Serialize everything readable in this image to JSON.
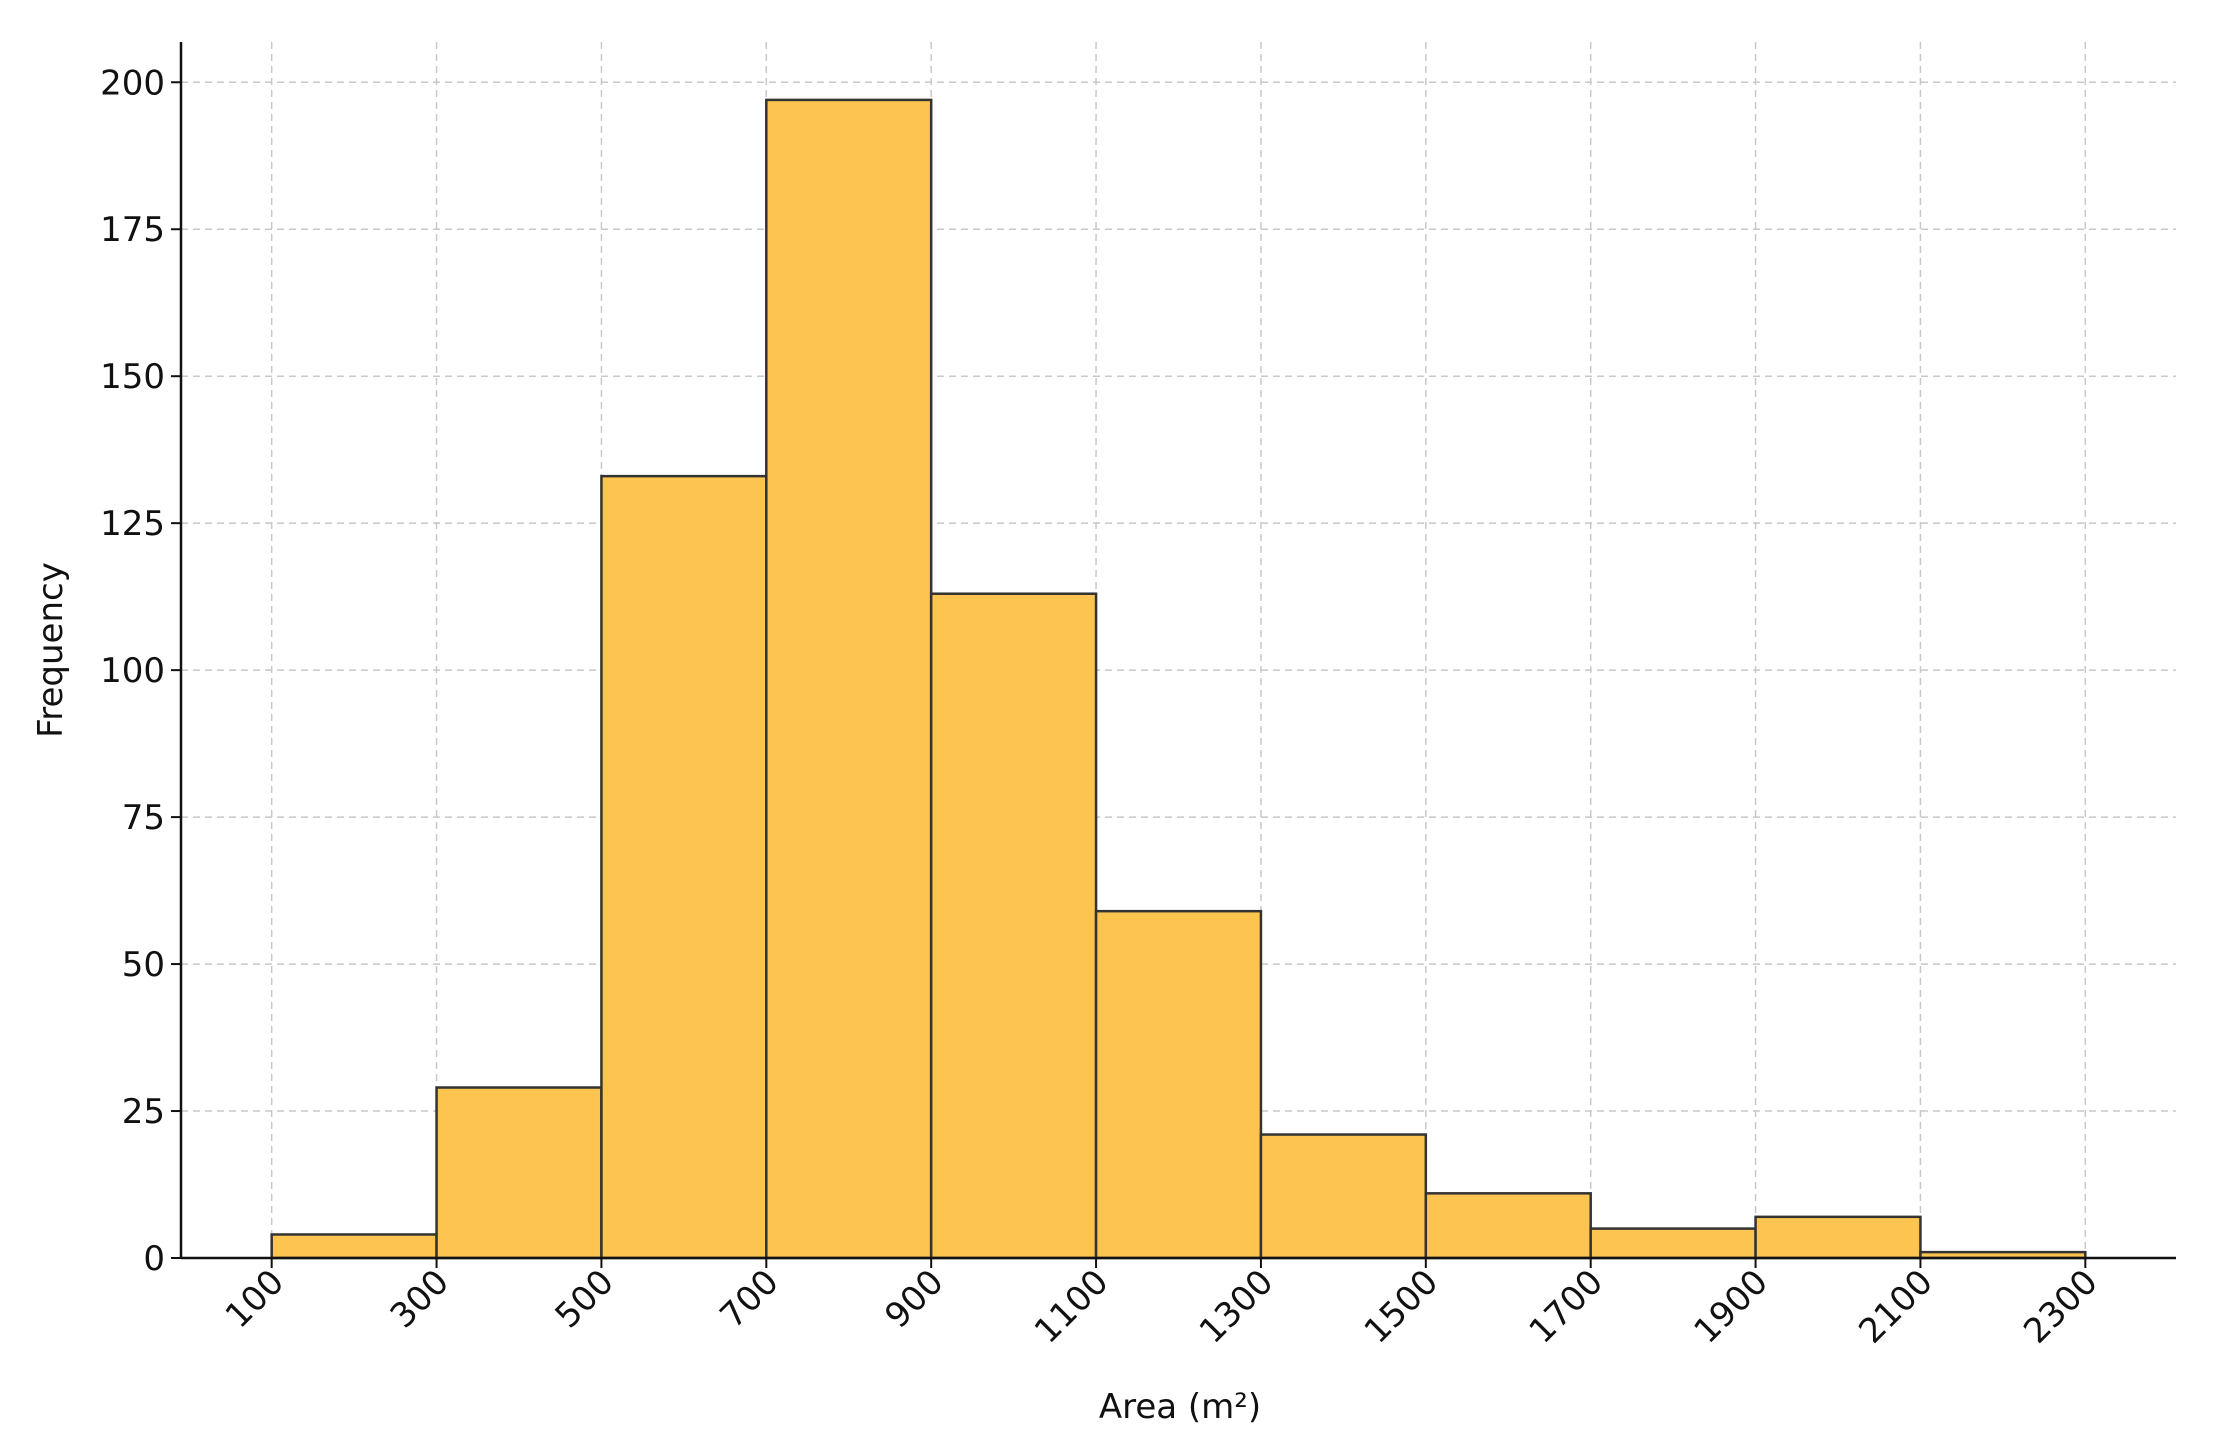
{
  "chart_data": {
    "type": "histogram",
    "x_label": "Area (m²)",
    "y_label": "Frequency",
    "bins": [
      100,
      300,
      500,
      700,
      900,
      1100,
      1300,
      1500,
      1700,
      1900,
      2100,
      2300
    ],
    "values": [
      4,
      29,
      133,
      197,
      113,
      59,
      21,
      11,
      5,
      7,
      1
    ],
    "color": "#fdc44f",
    "edgecolor": "#333333",
    "xlim": [
      -10,
      2410
    ],
    "ylim": [
      0,
      206.85
    ],
    "xticks": [
      100,
      300,
      500,
      700,
      900,
      1100,
      1300,
      1500,
      1700,
      1900,
      2100,
      2300
    ],
    "yticks": [
      0,
      25,
      50,
      75,
      100,
      125,
      150,
      175,
      200
    ],
    "grid": true
  }
}
